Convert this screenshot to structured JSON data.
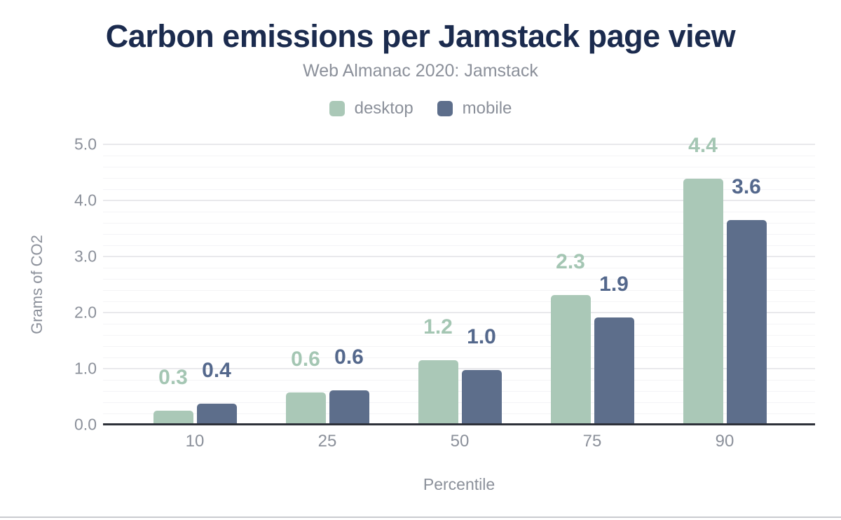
{
  "header": {
    "title": "Carbon emissions per Jamstack page view",
    "subtitle": "Web Almanac 2020: Jamstack"
  },
  "legend": {
    "items": [
      {
        "label": "desktop",
        "color": "#aac8b7"
      },
      {
        "label": "mobile",
        "color": "#5d6e8b"
      }
    ]
  },
  "chart_data": {
    "type": "bar",
    "title": "Carbon emissions per Jamstack page view",
    "subtitle": "Web Almanac 2020: Jamstack",
    "categories": [
      "10",
      "25",
      "50",
      "75",
      "90"
    ],
    "series": [
      {
        "name": "desktop",
        "color": "#aac8b7",
        "label_color": "#a4c6b3",
        "values": [
          0.3,
          0.6,
          1.2,
          2.3,
          4.4
        ],
        "labels": [
          "0.3",
          "0.6",
          "1.2",
          "2.3",
          "4.4"
        ],
        "values_precise": [
          0.25,
          0.58,
          1.15,
          2.31,
          4.39
        ]
      },
      {
        "name": "mobile",
        "color": "#5d6e8b",
        "label_color": "#54688c",
        "values": [
          0.4,
          0.6,
          1.0,
          1.9,
          3.6
        ],
        "labels": [
          "0.4",
          "0.6",
          "1.0",
          "1.9",
          "3.6"
        ],
        "values_precise": [
          0.38,
          0.61,
          0.98,
          1.91,
          3.65
        ]
      }
    ],
    "xlabel": "Percentile",
    "ylabel": "Grams of CO2",
    "ylim": [
      0,
      5
    ],
    "y_ticks": [
      "0.0",
      "1.0",
      "2.0",
      "3.0",
      "4.0",
      "5.0"
    ],
    "grid": {
      "major_step": 1.0,
      "minor_step": 0.2,
      "orientation": "horizontal"
    },
    "legend_position": "top-center",
    "bar_corner": "rounded-top"
  },
  "colors": {
    "page_bg": "#ffffff",
    "title_navy": "#1b2b4e",
    "gray_text": "#8b909a",
    "axis_line": "#2d3039",
    "grid_major": "#e9e9ec",
    "grid_minor": "#f4f4f6",
    "page_border": "#c9cbcf",
    "desktop": "#aac8b7",
    "mobile": "#5d6e8b"
  }
}
